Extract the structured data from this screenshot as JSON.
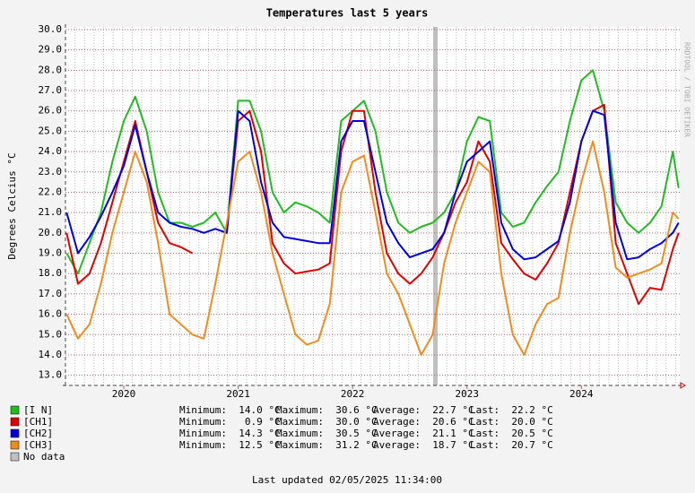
{
  "chart_data": {
    "type": "line",
    "title": "Temperatures last 5 years",
    "y_label": "Degrees Celcius   °C",
    "watermark": "RRDTOOL / TOBI OETIKER",
    "footer": "Last updated 02/05/2025 11:34:00",
    "xlim": [
      2019.49,
      2024.86
    ],
    "xticks": [
      2020,
      2021,
      2022,
      2023,
      2024
    ],
    "ylim": [
      12.5,
      30.13
    ],
    "yticks": [
      {
        "value": 13,
        "label": "13.0"
      },
      {
        "value": 14,
        "label": "14.0"
      },
      {
        "value": 15,
        "label": "15.0"
      },
      {
        "value": 16,
        "label": "16.0"
      },
      {
        "value": 17,
        "label": "17.0"
      },
      {
        "value": 18,
        "label": "18.0"
      },
      {
        "value": 19,
        "label": "19.0"
      },
      {
        "value": 20,
        "label": "20.0"
      },
      {
        "value": 21,
        "label": "21.0"
      },
      {
        "value": 22,
        "label": "22.0"
      },
      {
        "value": 23,
        "label": "23.0"
      },
      {
        "value": 24,
        "label": "24.0"
      },
      {
        "value": 25,
        "label": "25.0"
      },
      {
        "value": 26,
        "label": "26.0"
      },
      {
        "value": 27,
        "label": "27.0"
      },
      {
        "value": 28,
        "label": "28.0"
      },
      {
        "value": 29,
        "label": "29.0"
      },
      {
        "value": 30,
        "label": "30.0"
      }
    ],
    "grid": true,
    "x": [
      2019.5,
      2019.6,
      2019.7,
      2019.8,
      2019.9,
      2020.0,
      2020.1,
      2020.2,
      2020.3,
      2020.4,
      2020.5,
      2020.6,
      2020.7,
      2020.8,
      2020.9,
      2021.0,
      2021.1,
      2021.2,
      2021.3,
      2021.4,
      2021.5,
      2021.6,
      2021.7,
      2021.8,
      2021.9,
      2022.0,
      2022.1,
      2022.2,
      2022.3,
      2022.4,
      2022.5,
      2022.6,
      2022.7,
      2022.8,
      2022.9,
      2023.0,
      2023.1,
      2023.2,
      2023.3,
      2023.4,
      2023.5,
      2023.6,
      2023.7,
      2023.8,
      2023.9,
      2024.0,
      2024.1,
      2024.2,
      2024.3,
      2024.4,
      2024.5,
      2024.6,
      2024.7,
      2024.8,
      2024.85
    ],
    "series": [
      {
        "name": "[I N]",
        "color": "#22bb22",
        "stats": [
          "Minimum:  14.0 °C",
          "Maximum:  30.6 °C",
          "Average:  22.7 °C",
          "Last:  22.2 °C"
        ],
        "values": [
          19.0,
          18.0,
          19.5,
          21,
          23.5,
          25.5,
          26.7,
          25,
          22,
          20.5,
          20.5,
          20.3,
          20.5,
          21,
          20,
          26.5,
          26.5,
          25,
          22,
          21,
          21.5,
          21.3,
          21,
          20.5,
          25.5,
          26,
          26.5,
          25,
          22,
          20.5,
          20,
          20.3,
          20.5,
          21,
          22,
          24.5,
          25.7,
          25.5,
          21,
          20.3,
          20.5,
          21.5,
          22.3,
          23,
          25.5,
          27.5,
          28,
          26,
          21.5,
          20.5,
          20,
          20.5,
          21.3,
          24,
          22.2
        ]
      },
      {
        "name": "[CH1]",
        "color": "#e00000",
        "stats": [
          "Minimum:   0.9 °C",
          "Maximum:  30.0 °C",
          "Average:  20.6 °C",
          "Last:  20.0 °C"
        ],
        "values": [
          20,
          17.5,
          18,
          19.5,
          21.5,
          23.5,
          25.5,
          23,
          20.5,
          19.5,
          19.3,
          19,
          null,
          null,
          20,
          25.5,
          26,
          24,
          19.5,
          18.5,
          18,
          18.1,
          18.2,
          18.5,
          24,
          26,
          26,
          22,
          19,
          18,
          17.5,
          18,
          18.8,
          20,
          21.5,
          22.5,
          24.5,
          23.5,
          19.5,
          18.7,
          18,
          17.7,
          18.5,
          19.5,
          22,
          24.5,
          26,
          26.3,
          19.5,
          18,
          16.5,
          17.3,
          17.2,
          19.2,
          20.0
        ]
      },
      {
        "name": "[CH2]",
        "color": "#0000dd",
        "stats": [
          "Minimum:  14.3 °C",
          "Maximum:  30.5 °C",
          "Average:  21.1 °C",
          "Last:  20.5 °C"
        ],
        "values": [
          21,
          19,
          19.8,
          20.8,
          22,
          23.3,
          25.3,
          23,
          21,
          20.5,
          20.3,
          20.2,
          20,
          20.2,
          20,
          26,
          25.5,
          22.5,
          20.5,
          19.8,
          19.7,
          19.6,
          19.5,
          19.5,
          24.5,
          25.5,
          25.5,
          23,
          20.5,
          19.5,
          18.8,
          19,
          19.2,
          20,
          22,
          23.5,
          24,
          24.5,
          20.5,
          19.2,
          18.7,
          18.8,
          19.2,
          19.6,
          21.5,
          24.5,
          26,
          25.8,
          20.5,
          18.7,
          18.8,
          19.2,
          19.5,
          20,
          20.5
        ]
      },
      {
        "name": "[CH3]",
        "color": "#f08c1e",
        "stats": [
          "Minimum:  12.5 °C",
          "Maximum:  31.2 °C",
          "Average:  18.7 °C",
          "Last:  20.7 °C"
        ],
        "values": [
          16,
          14.8,
          15.5,
          17.5,
          20,
          22,
          24,
          22.5,
          19.5,
          16,
          15.5,
          15,
          14.8,
          17.5,
          20.5,
          23.5,
          24,
          22,
          19,
          17,
          15,
          14.5,
          14.7,
          16.5,
          22,
          23.5,
          23.8,
          21,
          18,
          17,
          15.5,
          14,
          15,
          18.5,
          20.5,
          22,
          23.5,
          23,
          18,
          15,
          14,
          15.5,
          16.5,
          16.8,
          20,
          22.5,
          24.5,
          22,
          18.3,
          17.8,
          18,
          18.2,
          18.5,
          21,
          20.7
        ]
      }
    ],
    "no_data": {
      "name": "No data",
      "color": "#c0c0c0"
    }
  }
}
